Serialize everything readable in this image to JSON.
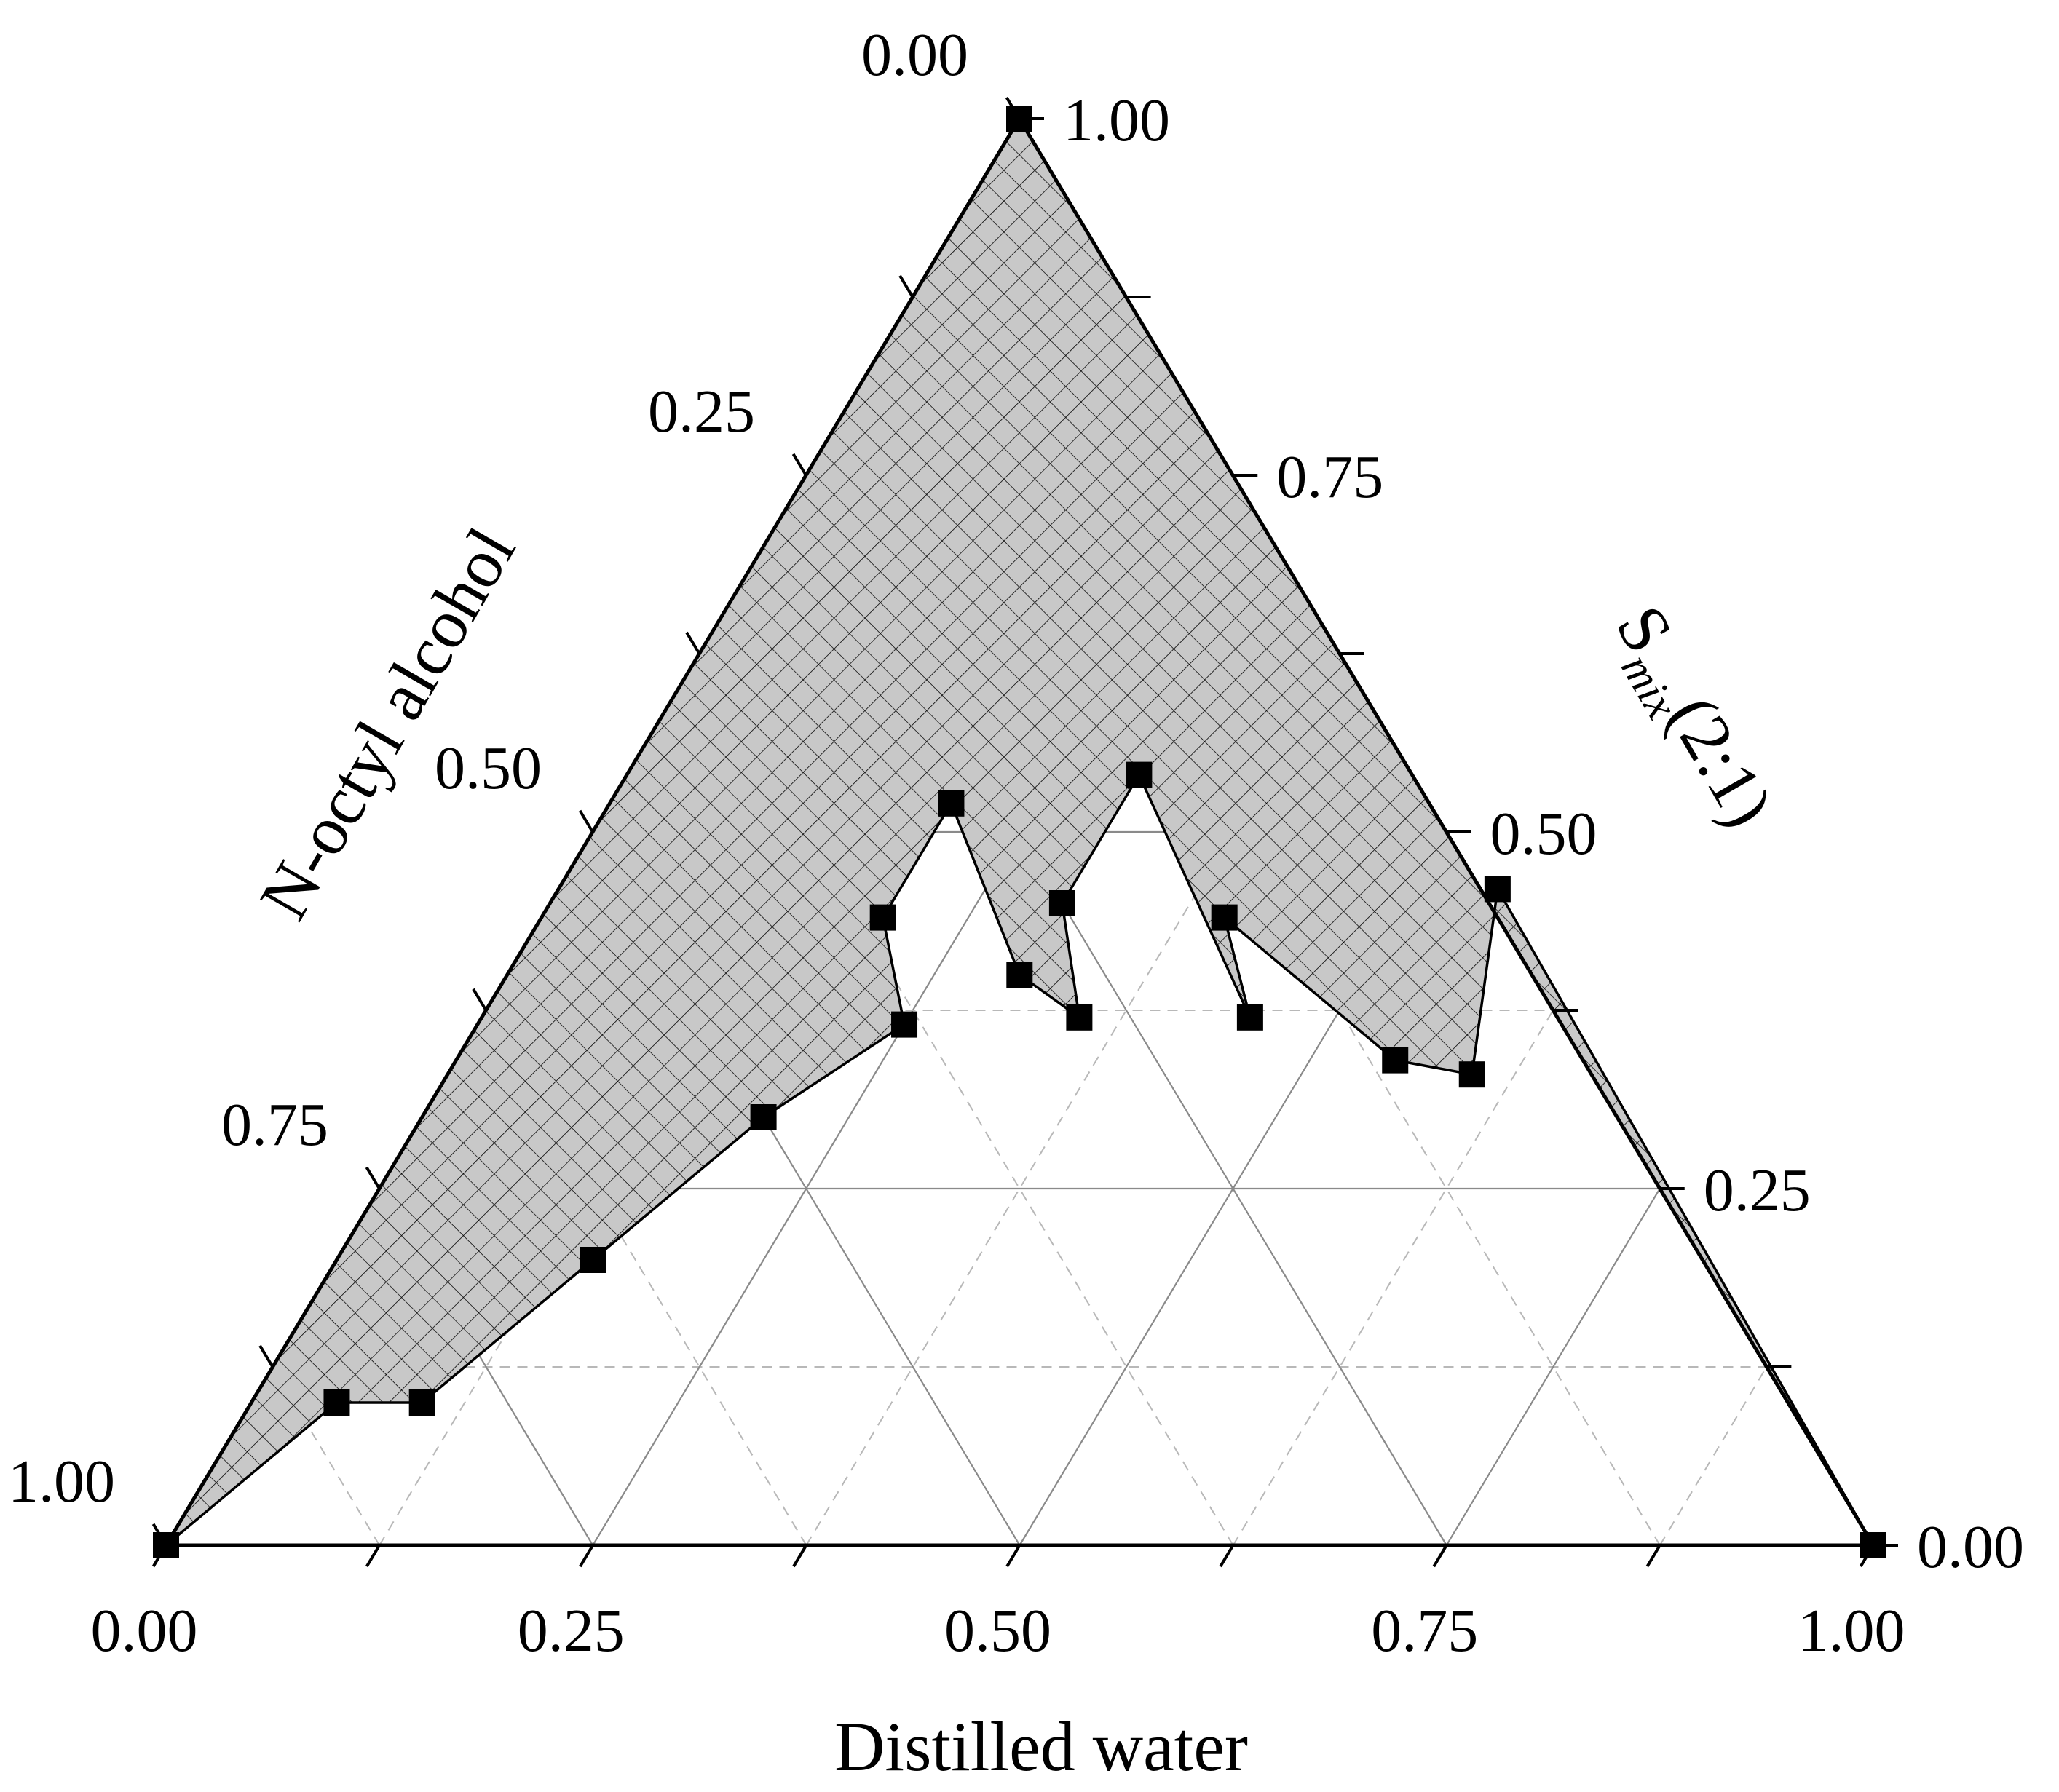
{
  "chart_data": {
    "type": "ternary",
    "axes": {
      "bottom": {
        "label": "Distilled water",
        "ticks": [
          "0.00",
          "0.25",
          "0.50",
          "0.75",
          "1.00"
        ]
      },
      "left": {
        "label": "N-octyl alcohol",
        "ticks": [
          "0.00",
          "0.25",
          "0.50",
          "0.75",
          "1.00"
        ]
      },
      "right": {
        "label_main": "S",
        "label_sub": "mix",
        "label_tail": "(2:1)",
        "ticks": [
          "0.00",
          "0.25",
          "0.50",
          "0.75",
          "1.00"
        ]
      }
    },
    "range": [
      0,
      1
    ],
    "grid": true,
    "fill": "#c8c8c8",
    "hatch": "crosshatch",
    "marker": "square",
    "series": [
      {
        "points": [
          {
            "water": 0.0,
            "smix": 0.0
          },
          {
            "water": 0.0,
            "smix": 1.0
          },
          {
            "water": 1.0,
            "smix": 0.0
          },
          {
            "water": 0.05,
            "smix": 0.1
          },
          {
            "water": 0.1,
            "smix": 0.1
          },
          {
            "water": 0.15,
            "smix": 0.2
          },
          {
            "water": 0.2,
            "smix": 0.3
          },
          {
            "water": 0.25,
            "smix": 0.365
          },
          {
            "water": 0.2,
            "smix": 0.44
          },
          {
            "water": 0.2,
            "smix": 0.52
          },
          {
            "water": 0.3,
            "smix": 0.4
          },
          {
            "water": 0.35,
            "smix": 0.37
          },
          {
            "water": 0.3,
            "smix": 0.45
          },
          {
            "water": 0.3,
            "smix": 0.54
          },
          {
            "water": 0.45,
            "smix": 0.37
          },
          {
            "water": 0.4,
            "smix": 0.44
          },
          {
            "water": 0.55,
            "smix": 0.34
          },
          {
            "water": 0.6,
            "smix": 0.33
          },
          {
            "water": 0.55,
            "smix": 0.46
          }
        ],
        "boundary_order": [
          0,
          3,
          4,
          5,
          6,
          7,
          8,
          9,
          10,
          11,
          12,
          13,
          14,
          15,
          16,
          17,
          18,
          2,
          1
        ]
      }
    ]
  }
}
